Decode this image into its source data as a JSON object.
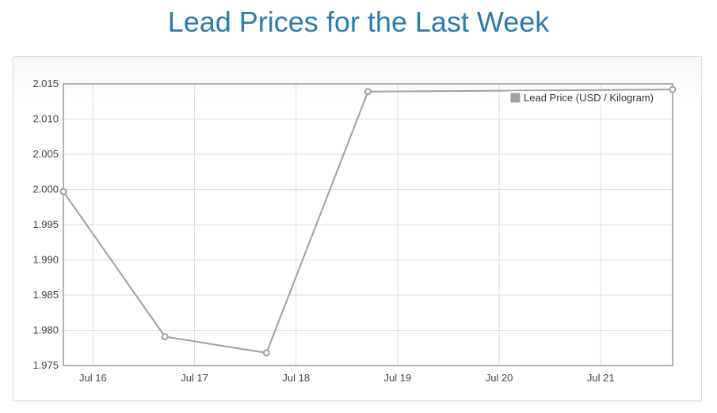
{
  "page": {
    "title": "Lead Prices for the Last Week"
  },
  "chart_data": {
    "type": "line",
    "title": "Lead Prices for the Last Week",
    "xlabel": "",
    "ylabel": "",
    "x_tick_labels": [
      "Jul 16",
      "Jul 17",
      "Jul 18",
      "Jul 19",
      "Jul 20",
      "Jul 21"
    ],
    "y_tick_labels": [
      "2.015",
      "2.010",
      "2.005",
      "2.000",
      "1.995",
      "1.990",
      "1.985",
      "1.980",
      "1.975"
    ],
    "ylim": [
      1.975,
      2.015
    ],
    "xlim": [
      "2024-07-15T17:00",
      "2024-07-21T17:00"
    ],
    "x_tick_values": [
      "2024-07-16T00:00",
      "2024-07-17T00:00",
      "2024-07-18T00:00",
      "2024-07-19T00:00",
      "2024-07-20T00:00",
      "2024-07-21T00:00"
    ],
    "grid": true,
    "legend_position": "top-right",
    "series": [
      {
        "name": "Lead Price (USD / Kilogram)",
        "color": "#a0a0a0",
        "x": [
          "2024-07-15T17:00",
          "2024-07-16T17:00",
          "2024-07-17T17:00",
          "2024-07-18T17:00",
          "2024-07-21T17:00"
        ],
        "values": [
          1.9997,
          1.9791,
          1.9768,
          2.0139,
          2.0142
        ]
      }
    ]
  }
}
